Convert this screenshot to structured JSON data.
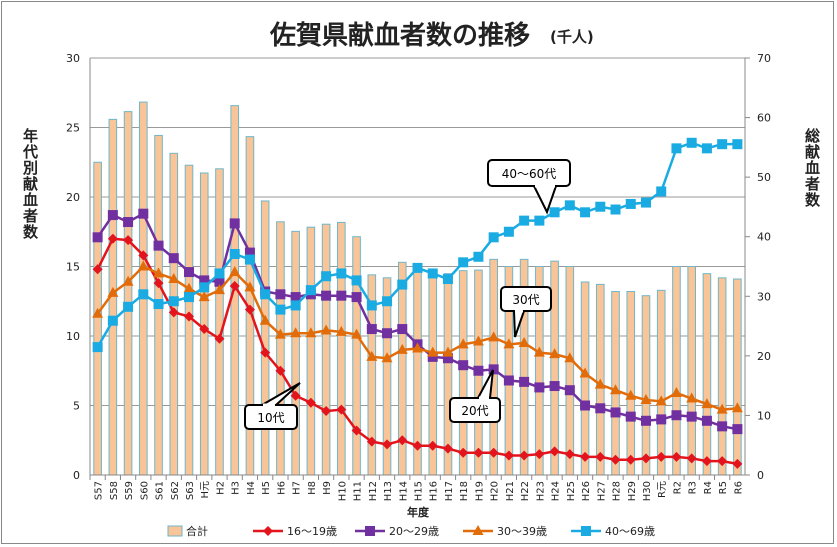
{
  "chart_data": {
    "type": "bar+line",
    "title": "佐賀県献血者数の推移",
    "title_unit": "(千人)",
    "xlabel": "年度",
    "ylabel_left": "年代別献血者数",
    "ylabel_right": "総献血者数",
    "ylim_left": [
      0,
      30
    ],
    "yticks_left": [
      0,
      5,
      10,
      15,
      20,
      25,
      30
    ],
    "ylim_right": [
      0,
      70
    ],
    "yticks_right": [
      0,
      10,
      20,
      30,
      40,
      50,
      60,
      70
    ],
    "grid": true,
    "legend_position": "bottom",
    "categories": [
      "S57",
      "S58",
      "S59",
      "S60",
      "S61",
      "S62",
      "S63",
      "H元",
      "H2",
      "H3",
      "H4",
      "H5",
      "H6",
      "H7",
      "H8",
      "H9",
      "H10",
      "H11",
      "H12",
      "H13",
      "H14",
      "H15",
      "H16",
      "H17",
      "H18",
      "H19",
      "H20",
      "H21",
      "H22",
      "H23",
      "H24",
      "H25",
      "H26",
      "H27",
      "H28",
      "H29",
      "H30",
      "R元",
      "R2",
      "R3",
      "R4",
      "R5",
      "R6"
    ],
    "bars": {
      "name": "合計",
      "axis": "right",
      "color": "#F9C497",
      "edge": "#6FB7C9",
      "values": [
        52.5,
        59.7,
        61.0,
        62.6,
        57.0,
        54.0,
        52.0,
        50.7,
        51.4,
        62.0,
        56.8,
        46.0,
        42.5,
        40.9,
        41.6,
        42.1,
        42.4,
        40.0,
        33.6,
        33.1,
        35.7,
        35.0,
        34.5,
        33.8,
        34.3,
        34.4,
        36.2,
        35.0,
        36.2,
        35.0,
        35.9,
        35.0,
        32.4,
        32.0,
        30.8,
        30.8,
        30.1,
        31.0,
        35.0,
        35.0,
        33.8,
        33.1,
        32.9
      ]
    },
    "series": [
      {
        "name": "16～19歳",
        "axis": "left",
        "color": "#E3141B",
        "marker": "diamond",
        "values": [
          14.8,
          17.0,
          16.9,
          15.8,
          13.8,
          11.7,
          11.4,
          10.5,
          9.8,
          13.6,
          11.9,
          8.8,
          7.5,
          5.7,
          5.2,
          4.6,
          4.7,
          3.2,
          2.4,
          2.2,
          2.5,
          2.1,
          2.1,
          1.9,
          1.6,
          1.6,
          1.6,
          1.4,
          1.4,
          1.5,
          1.7,
          1.5,
          1.3,
          1.3,
          1.1,
          1.1,
          1.2,
          1.3,
          1.3,
          1.2,
          1.0,
          1.0,
          0.8
        ]
      },
      {
        "name": "20～29歳",
        "axis": "left",
        "color": "#7030A0",
        "marker": "square",
        "values": [
          17.1,
          18.7,
          18.2,
          18.8,
          16.5,
          15.6,
          14.6,
          14.0,
          13.9,
          18.1,
          16.0,
          13.2,
          13.0,
          12.8,
          13.0,
          12.9,
          12.9,
          12.8,
          10.5,
          10.2,
          10.5,
          9.4,
          8.5,
          8.4,
          7.9,
          7.5,
          7.6,
          6.8,
          6.7,
          6.3,
          6.4,
          6.1,
          5.0,
          4.8,
          4.5,
          4.2,
          3.9,
          4.0,
          4.3,
          4.2,
          3.9,
          3.5,
          3.3
        ]
      },
      {
        "name": "30～39歳",
        "axis": "left",
        "color": "#E36C0A",
        "marker": "triangle",
        "values": [
          11.6,
          13.1,
          13.9,
          15.0,
          14.5,
          14.1,
          13.4,
          12.8,
          13.3,
          14.6,
          13.5,
          11.1,
          10.1,
          10.2,
          10.2,
          10.4,
          10.3,
          10.1,
          8.5,
          8.4,
          9.0,
          9.1,
          8.8,
          8.8,
          9.4,
          9.6,
          9.9,
          9.4,
          9.5,
          8.8,
          8.7,
          8.4,
          7.3,
          6.5,
          6.1,
          5.7,
          5.4,
          5.3,
          5.9,
          5.5,
          5.1,
          4.7,
          4.8
        ]
      },
      {
        "name": "40～69歳",
        "axis": "left",
        "color": "#1AABE3",
        "marker": "square",
        "values": [
          9.2,
          11.1,
          12.1,
          13.0,
          12.3,
          12.5,
          12.8,
          13.5,
          14.5,
          15.9,
          15.5,
          13.0,
          11.9,
          12.2,
          13.3,
          14.3,
          14.5,
          14.0,
          12.2,
          12.5,
          13.7,
          14.9,
          14.5,
          14.1,
          15.3,
          15.7,
          17.1,
          17.5,
          18.3,
          18.3,
          18.9,
          19.4,
          18.9,
          19.3,
          19.1,
          19.5,
          19.6,
          20.4,
          23.5,
          23.9,
          23.5,
          23.8,
          23.8
        ]
      }
    ],
    "annotations": [
      {
        "text": "10代",
        "points_to": "H7"
      },
      {
        "text": "20代",
        "points_to": "H20"
      },
      {
        "text": "30代",
        "points_to": "H21"
      },
      {
        "text": "40～60代",
        "points_to": "H23"
      }
    ]
  }
}
